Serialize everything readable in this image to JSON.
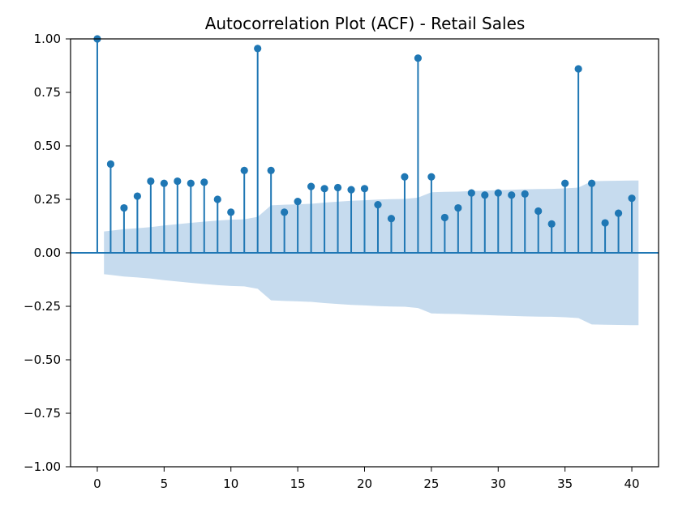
{
  "chart_data": {
    "type": "stem",
    "title": "Autocorrelation Plot (ACF) - Retail Sales",
    "xlabel": "",
    "ylabel": "",
    "xlim": [
      -2,
      42
    ],
    "ylim": [
      -1.0,
      1.0
    ],
    "x_ticks": [
      0,
      5,
      10,
      15,
      20,
      25,
      30,
      35,
      40
    ],
    "y_ticks": [
      -1.0,
      -0.75,
      -0.5,
      -0.25,
      0.0,
      0.25,
      0.5,
      0.75,
      1.0
    ],
    "x_tick_labels": [
      "0",
      "5",
      "10",
      "15",
      "20",
      "25",
      "30",
      "35",
      "40"
    ],
    "y_tick_labels": [
      "−1.00",
      "−0.75",
      "−0.50",
      "−0.25",
      "0.00",
      "0.25",
      "0.50",
      "0.75",
      "1.00"
    ],
    "grid": false,
    "lags": [
      0,
      1,
      2,
      3,
      4,
      5,
      6,
      7,
      8,
      9,
      10,
      11,
      12,
      13,
      14,
      15,
      16,
      17,
      18,
      19,
      20,
      21,
      22,
      23,
      24,
      25,
      26,
      27,
      28,
      29,
      30,
      31,
      32,
      33,
      34,
      35,
      36,
      37,
      38,
      39,
      40
    ],
    "values": [
      1.0,
      0.415,
      0.21,
      0.265,
      0.335,
      0.325,
      0.335,
      0.325,
      0.33,
      0.25,
      0.19,
      0.385,
      0.955,
      0.385,
      0.19,
      0.24,
      0.31,
      0.3,
      0.305,
      0.295,
      0.3,
      0.225,
      0.16,
      0.355,
      0.91,
      0.355,
      0.165,
      0.21,
      0.28,
      0.27,
      0.28,
      0.27,
      0.275,
      0.195,
      0.135,
      0.325,
      0.86,
      0.325,
      0.14,
      0.185,
      0.255
    ],
    "confidence_band": {
      "lags": [
        0.5,
        1,
        2,
        3,
        4,
        5,
        6,
        7,
        8,
        9,
        10,
        11,
        12,
        13,
        14,
        15,
        16,
        17,
        18,
        19,
        20,
        21,
        22,
        23,
        24,
        25,
        26,
        27,
        28,
        29,
        30,
        31,
        32,
        33,
        34,
        35,
        36,
        37,
        38,
        39,
        40,
        40.5
      ],
      "upper": [
        0.1,
        0.103,
        0.111,
        0.115,
        0.12,
        0.128,
        0.134,
        0.14,
        0.146,
        0.151,
        0.155,
        0.157,
        0.168,
        0.222,
        0.225,
        0.227,
        0.229,
        0.235,
        0.239,
        0.243,
        0.246,
        0.249,
        0.251,
        0.252,
        0.258,
        0.283,
        0.285,
        0.286,
        0.289,
        0.291,
        0.293,
        0.295,
        0.297,
        0.298,
        0.299,
        0.301,
        0.305,
        0.335,
        0.336,
        0.337,
        0.338,
        0.338
      ],
      "lower": [
        -0.1,
        -0.103,
        -0.111,
        -0.115,
        -0.12,
        -0.128,
        -0.134,
        -0.14,
        -0.146,
        -0.151,
        -0.155,
        -0.157,
        -0.168,
        -0.222,
        -0.225,
        -0.227,
        -0.229,
        -0.235,
        -0.239,
        -0.243,
        -0.246,
        -0.249,
        -0.251,
        -0.252,
        -0.258,
        -0.283,
        -0.285,
        -0.286,
        -0.289,
        -0.291,
        -0.293,
        -0.295,
        -0.297,
        -0.298,
        -0.299,
        -0.301,
        -0.305,
        -0.335,
        -0.336,
        -0.337,
        -0.338,
        -0.338
      ]
    },
    "colors": {
      "series": "#1f77b4",
      "band": "#c6dbee",
      "axis": "#000000"
    }
  }
}
